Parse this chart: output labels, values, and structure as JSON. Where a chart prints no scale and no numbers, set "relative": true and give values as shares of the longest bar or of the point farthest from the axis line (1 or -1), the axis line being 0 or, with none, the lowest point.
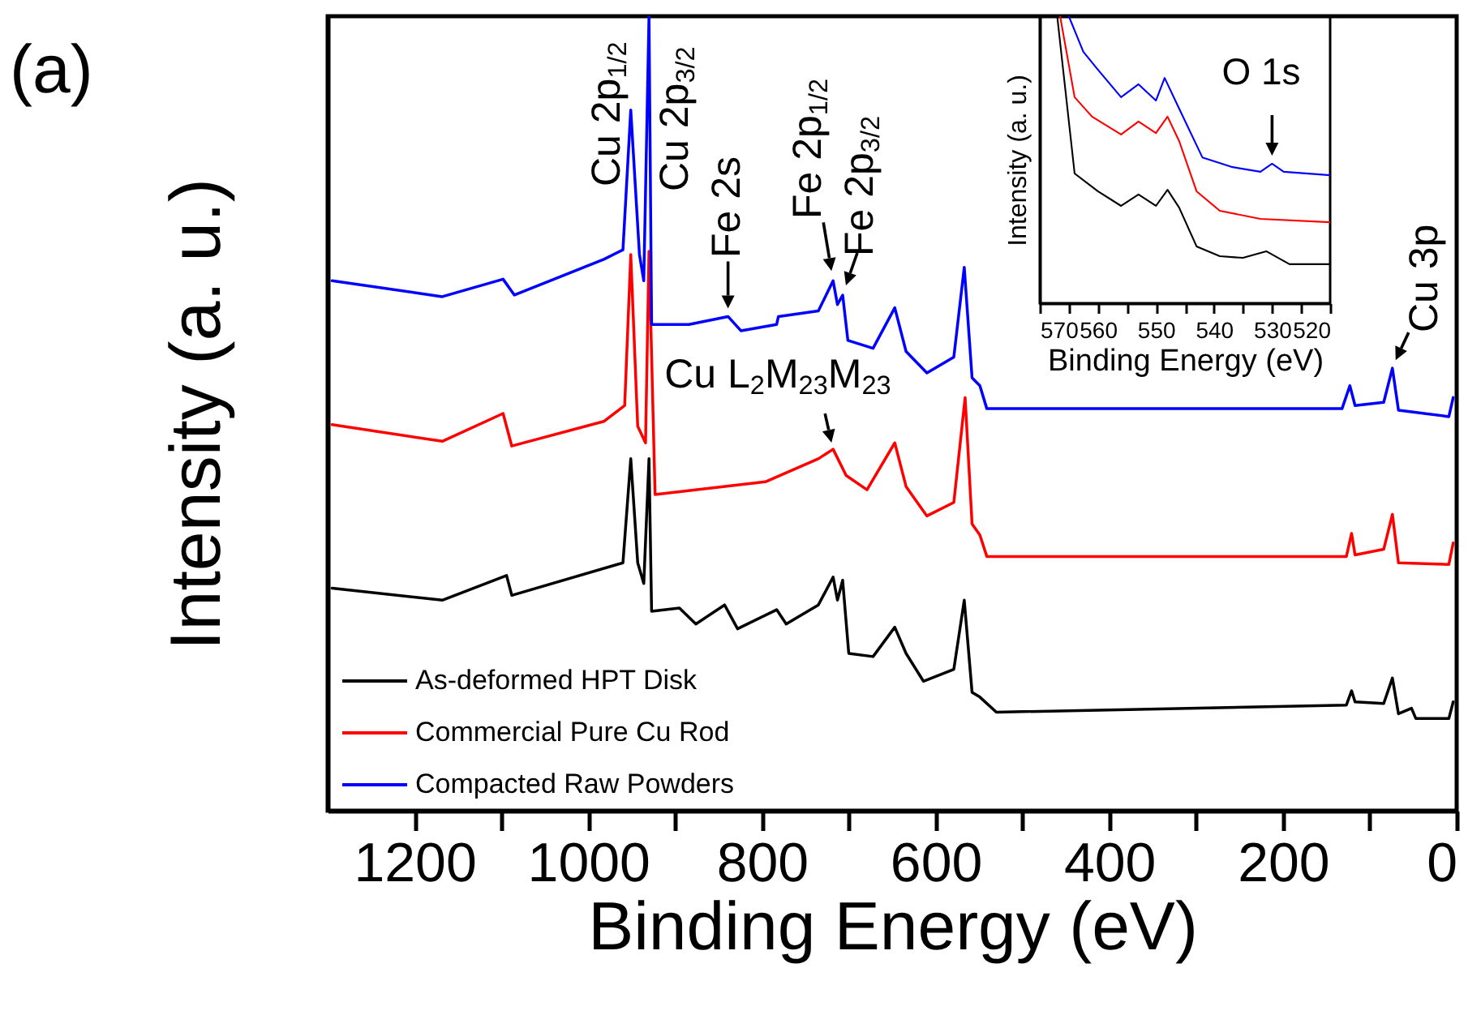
{
  "chart_data": [
    {
      "type": "line",
      "xlabel": "Binding Energy (eV)",
      "ylabel": "Intensity (a. u.)",
      "relative": true,
      "legend": "bottom left",
      "xlim": [
        1300,
        0
      ],
      "xticks": [
        1200,
        {
          "value": 1100,
          "label": null
        },
        1000,
        {
          "value": 900,
          "label": null
        },
        800,
        {
          "value": 700,
          "label": null
        },
        600,
        {
          "value": 500,
          "label": null
        },
        400,
        {
          "value": 300,
          "label": null
        },
        200,
        {
          "value": 100,
          "label": null
        },
        0
      ],
      "series": [
        {
          "name": "As-deformed HPT Disk",
          "color": "#000000",
          "x": [
            1295,
            1168,
            1094,
            1088,
            960,
            951,
            943,
            936,
            930,
            927,
            895,
            876,
            843,
            828,
            783,
            772,
            735,
            718,
            713,
            707,
            700,
            672,
            647,
            634,
            614,
            579,
            567,
            558,
            549,
            530,
            127,
            121,
            117,
            84,
            74,
            67,
            52,
            47,
            9,
            4
          ],
          "values": [
            0.28,
            0.265,
            0.296,
            0.271,
            0.312,
            0.443,
            0.312,
            0.286,
            0.443,
            0.251,
            0.255,
            0.235,
            0.259,
            0.229,
            0.253,
            0.235,
            0.259,
            0.294,
            0.265,
            0.29,
            0.198,
            0.194,
            0.231,
            0.198,
            0.163,
            0.178,
            0.265,
            0.149,
            0.143,
            0.124,
            0.133,
            0.151,
            0.137,
            0.135,
            0.167,
            0.122,
            0.129,
            0.116,
            0.116,
            0.137
          ]
        },
        {
          "name": "Commercial Pure Cu Rod",
          "color": "#ff0000",
          "x": [
            1295,
            1168,
            1098,
            1088,
            982,
            958,
            951,
            943,
            934,
            930,
            923,
            796,
            735,
            718,
            703,
            679,
            647,
            634,
            610,
            579,
            566,
            558,
            549,
            541,
            127,
            121,
            117,
            84,
            74,
            67,
            9,
            4
          ],
          "values": [
            0.486,
            0.465,
            0.5,
            0.459,
            0.49,
            0.51,
            0.7,
            0.484,
            0.463,
            0.704,
            0.398,
            0.414,
            0.443,
            0.455,
            0.422,
            0.404,
            0.463,
            0.408,
            0.371,
            0.388,
            0.52,
            0.361,
            0.347,
            0.32,
            0.32,
            0.349,
            0.322,
            0.329,
            0.373,
            0.312,
            0.31,
            0.337
          ]
        },
        {
          "name": "Compacted Raw Powders",
          "color": "#0000ff",
          "x": [
            1295,
            1168,
            1098,
            1085,
            982,
            960,
            951,
            941,
            936,
            930,
            927,
            884,
            839,
            824,
            783,
            781,
            735,
            718,
            713,
            707,
            701,
            672,
            647,
            634,
            610,
            579,
            567,
            558,
            549,
            541,
            132,
            123,
            117,
            84,
            74,
            67,
            52,
            9,
            4
          ],
          "values": [
            0.667,
            0.647,
            0.669,
            0.649,
            0.694,
            0.706,
            0.882,
            0.7,
            0.667,
            1.0,
            0.612,
            0.612,
            0.622,
            0.604,
            0.612,
            0.622,
            0.629,
            0.667,
            0.637,
            0.649,
            0.592,
            0.582,
            0.633,
            0.578,
            0.551,
            0.571,
            0.684,
            0.545,
            0.535,
            0.506,
            0.506,
            0.535,
            0.51,
            0.514,
            0.557,
            0.504,
            0.502,
            0.496,
            0.52
          ]
        }
      ],
      "annotations": [
        "(a)",
        {
          "text": "Cu 2p$_{1/2}$",
          "x": 951,
          "y": 0.882
        },
        {
          "text": "Cu 2p$_{3/2}$",
          "x": 930,
          "y": 1.0
        },
        {
          "text": "Fe 2s",
          "x": 839,
          "y": 0.622
        },
        {
          "text": "Fe 2p$_{1/2}$",
          "x": 718,
          "y": 0.667
        },
        {
          "text": "Fe 2p$_{3/2}$",
          "x": 707,
          "y": 0.649
        },
        {
          "text": "Cu L$_{2}$M$_{23}$M$_{23}$",
          "x": 718,
          "y": 0.455
        },
        {
          "text": "Cu 3p",
          "x": 74,
          "y": 0.557
        }
      ]
    },
    {
      "type": "line",
      "xlabel": "Binding Energy (eV)",
      "ylabel": "Intensity (a. u.)",
      "relative": true,
      "xlim": [
        570,
        520
      ],
      "xticks": [
        570,
        {
          "value": 565,
          "label": null
        },
        560,
        {
          "value": 555,
          "label": null
        },
        550,
        {
          "value": 545,
          "label": null
        },
        540,
        {
          "value": 535,
          "label": null
        },
        530,
        {
          "value": 525,
          "label": null
        },
        520
      ],
      "series": [
        {
          "color": "#000000",
          "x": [
            567,
            564,
            560,
            556,
            553,
            550,
            548,
            546,
            543,
            539,
            535,
            531,
            527,
            520
          ],
          "values": [
            1.0,
            0.452,
            0.39,
            0.339,
            0.379,
            0.339,
            0.395,
            0.333,
            0.198,
            0.164,
            0.158,
            0.181,
            0.136,
            0.136
          ]
        },
        {
          "color": "#ff0000",
          "x": [
            566.5,
            564,
            561,
            556,
            553,
            550,
            548,
            546,
            543,
            539,
            532,
            520
          ],
          "values": [
            1.0,
            0.718,
            0.65,
            0.588,
            0.633,
            0.593,
            0.65,
            0.565,
            0.39,
            0.322,
            0.294,
            0.282
          ]
        },
        {
          "color": "#0000ff",
          "x": [
            565,
            562.5,
            560,
            556,
            553,
            550,
            548.5,
            546,
            542,
            537,
            532,
            530,
            528,
            520
          ],
          "values": [
            1.0,
            0.876,
            0.814,
            0.718,
            0.763,
            0.706,
            0.785,
            0.678,
            0.508,
            0.475,
            0.458,
            0.486,
            0.458,
            0.446
          ]
        }
      ],
      "annotations": [
        {
          "text": "O 1s",
          "x": 530,
          "y": 0.486
        }
      ]
    }
  ]
}
